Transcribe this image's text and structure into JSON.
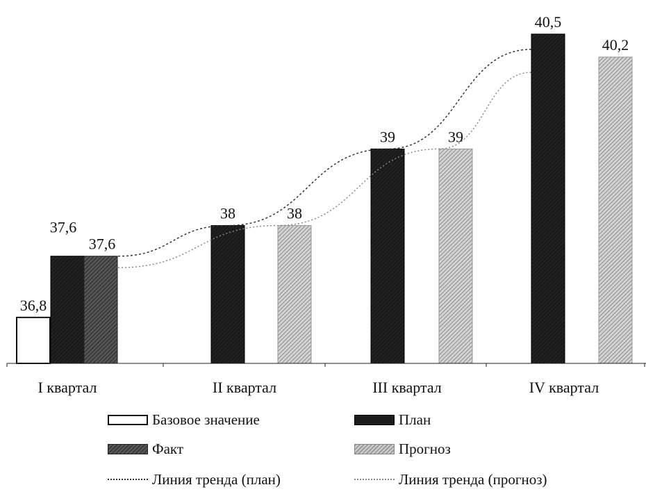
{
  "chart_data": {
    "type": "bar",
    "categories": [
      "I квартал",
      "II квартал",
      "III квартал",
      "IV квартал"
    ],
    "series": [
      {
        "name": "Базовое значение",
        "key": "base",
        "values": [
          36.8,
          null,
          null,
          null
        ],
        "labels": [
          "36,8",
          "",
          "",
          ""
        ]
      },
      {
        "name": "План",
        "key": "plan",
        "values": [
          37.6,
          38,
          39,
          40.5
        ],
        "labels": [
          "37,6",
          "38",
          "39",
          "40,5"
        ]
      },
      {
        "name": "Факт",
        "key": "fact",
        "values": [
          37.6,
          null,
          null,
          null
        ],
        "labels": [
          "37,6",
          "",
          "",
          ""
        ]
      },
      {
        "name": "Прогноз",
        "key": "prog",
        "values": [
          null,
          38,
          39,
          40.2
        ],
        "labels": [
          "",
          "38",
          "39",
          "40,2"
        ]
      }
    ],
    "trendlines": [
      {
        "name": "Линия тренда (план)",
        "style": "dotted",
        "color": "#333333"
      },
      {
        "name": "Линия тренда (прогноз)",
        "style": "dotted",
        "color": "#888888"
      }
    ],
    "ylim": [
      36.2,
      40.6
    ],
    "title": "",
    "xlabel": "",
    "ylabel": "",
    "grid": false,
    "legend_position": "bottom",
    "colors": {
      "base": "#ffffff",
      "plan": "#1c1c1c",
      "fact": "#4a4a4a",
      "prog": "#b8b8b8"
    }
  },
  "legend": {
    "base": "Базовое значение",
    "plan": "План",
    "fact": "Факт",
    "prog": "Прогноз",
    "trend_plan": "Линия тренда (план)",
    "trend_prog": "Линия тренда (прогноз)"
  }
}
